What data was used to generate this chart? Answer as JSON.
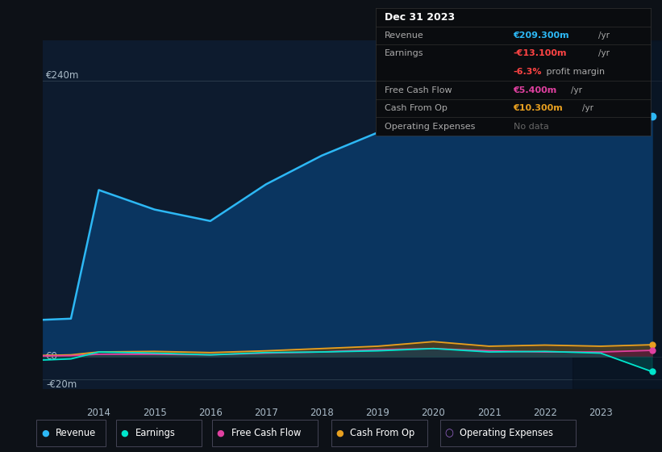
{
  "bg_color": "#0d1117",
  "chart_bg": "#0d1b2e",
  "years": [
    2013.0,
    2013.5,
    2014,
    2015,
    2016,
    2017,
    2018,
    2019,
    2020,
    2021,
    2022,
    2023,
    2023.92
  ],
  "revenue": [
    32,
    33,
    145,
    128,
    118,
    150,
    175,
    195,
    248,
    205,
    220,
    232,
    209
  ],
  "earnings": [
    -3,
    -2,
    4,
    3,
    1.5,
    3.5,
    4,
    5,
    7,
    4,
    4.5,
    3,
    -13.1
  ],
  "free_cash_flow": [
    0.5,
    0.8,
    2,
    2,
    1.5,
    3,
    4,
    6,
    7,
    5,
    4,
    4,
    5.4
  ],
  "cash_from_op": [
    1,
    1.5,
    4,
    4.5,
    3.5,
    5,
    7,
    9,
    13,
    9,
    10,
    9,
    10.3
  ],
  "revenue_color": "#2db8f5",
  "earnings_color": "#00e5cc",
  "fcf_color": "#e040a0",
  "cfo_color": "#e8a020",
  "opex_color": "#9966cc",
  "revenue_fill": "#0a3560",
  "earnings_fill": "#005555",
  "fcf_fill": "#601040",
  "cfo_fill": "#604010",
  "ylim_min": -28,
  "ylim_max": 275,
  "y0_label": "€0",
  "y240_label": "€240m",
  "yn20_label": "-€20m",
  "x_ticks": [
    2014,
    2015,
    2016,
    2017,
    2018,
    2019,
    2020,
    2021,
    2022,
    2023
  ],
  "info_box": {
    "date": "Dec 31 2023",
    "rows": [
      {
        "label": "Revenue",
        "value": "€209.300m /yr",
        "val_color": "#2db8f5"
      },
      {
        "label": "Earnings",
        "value": "-€13.100m /yr",
        "val_color": "#ff4444"
      },
      {
        "label": "",
        "value": "-6.3% profit margin",
        "val_color": "#ff4444",
        "mixed": true
      },
      {
        "label": "Free Cash Flow",
        "value": "€5.400m /yr",
        "val_color": "#e040a0"
      },
      {
        "label": "Cash From Op",
        "value": "€10.300m /yr",
        "val_color": "#e8a020"
      },
      {
        "label": "Operating Expenses",
        "value": "No data",
        "val_color": "#777777"
      }
    ]
  },
  "legend_items": [
    {
      "label": "Revenue",
      "color": "#2db8f5",
      "filled": true
    },
    {
      "label": "Earnings",
      "color": "#00e5cc",
      "filled": true
    },
    {
      "label": "Free Cash Flow",
      "color": "#e040a0",
      "filled": true
    },
    {
      "label": "Cash From Op",
      "color": "#e8a020",
      "filled": true
    },
    {
      "label": "Operating Expenses",
      "color": "#9966cc",
      "filled": false
    }
  ]
}
